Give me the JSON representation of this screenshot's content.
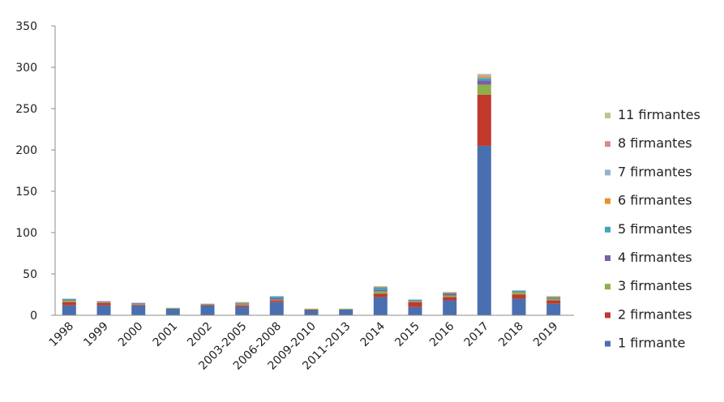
{
  "chart_data": {
    "type": "bar",
    "stacked": true,
    "title": "",
    "xlabel": "",
    "ylabel": "",
    "ylim": [
      0,
      350
    ],
    "yticks": [
      0,
      50,
      100,
      150,
      200,
      250,
      300,
      350
    ],
    "grid": false,
    "legend_position": "right",
    "categories": [
      "1998",
      "1999",
      "2000",
      "2001",
      "2002",
      "2003-2005",
      "2006-2008",
      "2009-2010",
      "2011-2013",
      "2014",
      "2015",
      "2016",
      "2017",
      "2018",
      "2019"
    ],
    "series": [
      {
        "name": "1 firmante",
        "color": "#4a6fb0",
        "values": [
          12,
          12,
          12,
          8,
          12,
          10,
          16,
          6,
          7,
          22,
          10,
          18,
          205,
          20,
          14
        ]
      },
      {
        "name": "2 firmantes",
        "color": "#c0392b",
        "values": [
          4,
          3,
          1,
          0,
          1,
          2,
          2,
          1,
          0,
          4,
          6,
          4,
          62,
          5,
          4
        ]
      },
      {
        "name": "3 firmantes",
        "color": "#8db04a",
        "values": [
          2,
          1,
          1,
          1,
          1,
          1,
          1,
          1,
          1,
          3,
          1,
          2,
          12,
          3,
          2
        ]
      },
      {
        "name": "4 firmantes",
        "color": "#7b5ea8",
        "values": [
          1,
          1,
          1,
          0,
          0,
          1,
          2,
          0,
          0,
          2,
          1,
          2,
          5,
          1,
          1
        ]
      },
      {
        "name": "5 firmantes",
        "color": "#3fa6c2",
        "values": [
          1,
          0,
          0,
          0,
          0,
          1,
          2,
          0,
          0,
          3,
          1,
          1,
          3,
          1,
          1
        ]
      },
      {
        "name": "6 firmantes",
        "color": "#e8912e",
        "values": [
          0,
          0,
          0,
          0,
          0,
          1,
          0,
          0,
          0,
          1,
          0,
          1,
          2,
          0,
          1
        ]
      },
      {
        "name": "7 firmantes",
        "color": "#9aafcf",
        "values": [
          0,
          0,
          0,
          0,
          0,
          0,
          0,
          0,
          0,
          0,
          0,
          0,
          1,
          0,
          0
        ]
      },
      {
        "name": "8 firmantes",
        "color": "#d98c89",
        "values": [
          0,
          0,
          0,
          0,
          0,
          0,
          0,
          0,
          0,
          0,
          0,
          0,
          1,
          0,
          0
        ]
      },
      {
        "name": "11 firmantes",
        "color": "#b5c98f",
        "values": [
          0,
          0,
          0,
          0,
          0,
          0,
          0,
          0,
          0,
          0,
          0,
          0,
          1,
          0,
          0
        ]
      }
    ]
  }
}
